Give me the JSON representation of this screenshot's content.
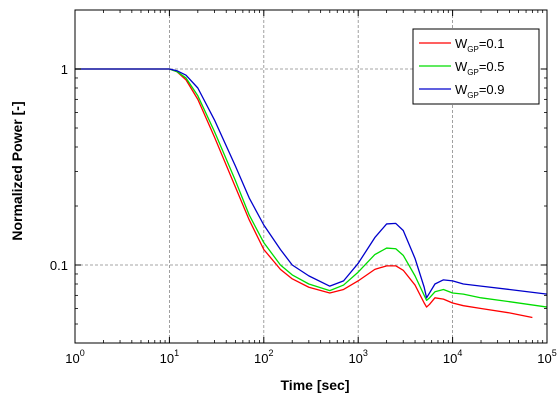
{
  "chart_data": {
    "type": "line",
    "xscale": "log",
    "yscale": "log",
    "xlim": [
      1,
      100000
    ],
    "ylim": [
      0.04,
      2
    ],
    "xlabel": "Time [sec]",
    "ylabel": "Normalized Power [-]",
    "grid": true,
    "legend_position": "top-right",
    "x_ticks": [
      {
        "base": "10",
        "exp": "0",
        "value": 1
      },
      {
        "base": "10",
        "exp": "1",
        "value": 10
      },
      {
        "base": "10",
        "exp": "2",
        "value": 100
      },
      {
        "base": "10",
        "exp": "3",
        "value": 1000
      },
      {
        "base": "10",
        "exp": "4",
        "value": 10000
      },
      {
        "base": "10",
        "exp": "5",
        "value": 100000
      }
    ],
    "y_ticks": [
      {
        "label": "1",
        "value": 1
      },
      {
        "label": "0.1",
        "value": 0.1
      }
    ],
    "series": [
      {
        "name_main": "W",
        "name_sub": "GP",
        "name_tail": "=0.1",
        "color": "#ff0000",
        "x": [
          1,
          5,
          10,
          12,
          15,
          20,
          30,
          50,
          70,
          100,
          150,
          200,
          300,
          500,
          700,
          1000,
          1500,
          2000,
          2500,
          3000,
          4000,
          5000,
          5300,
          5700,
          6500,
          8000,
          10000,
          13000,
          20000,
          40000,
          70000
        ],
        "y": [
          1.0,
          1.0,
          1.0,
          0.97,
          0.88,
          0.7,
          0.45,
          0.25,
          0.17,
          0.12,
          0.095,
          0.085,
          0.077,
          0.072,
          0.075,
          0.083,
          0.095,
          0.099,
          0.099,
          0.094,
          0.079,
          0.064,
          0.061,
          0.063,
          0.068,
          0.067,
          0.064,
          0.062,
          0.06,
          0.057,
          0.054
        ]
      },
      {
        "name_main": "W",
        "name_sub": "GP",
        "name_tail": "=0.5",
        "color": "#00dd00",
        "x": [
          1,
          5,
          10,
          12,
          15,
          20,
          30,
          50,
          70,
          100,
          150,
          200,
          300,
          500,
          700,
          1000,
          1500,
          2000,
          2500,
          3000,
          4000,
          5000,
          5300,
          5700,
          6500,
          8000,
          10000,
          13000,
          20000,
          40000,
          100000
        ],
        "y": [
          1.0,
          1.0,
          1.0,
          0.97,
          0.9,
          0.73,
          0.48,
          0.27,
          0.18,
          0.13,
          0.1,
          0.089,
          0.08,
          0.074,
          0.079,
          0.092,
          0.113,
          0.122,
          0.121,
          0.112,
          0.088,
          0.07,
          0.066,
          0.068,
          0.073,
          0.075,
          0.072,
          0.071,
          0.068,
          0.065,
          0.061
        ]
      },
      {
        "name_main": "W",
        "name_sub": "GP",
        "name_tail": "=0.9",
        "color": "#0000cc",
        "x": [
          1,
          5,
          10,
          12,
          15,
          20,
          30,
          50,
          70,
          100,
          150,
          200,
          300,
          500,
          700,
          1000,
          1500,
          2000,
          2500,
          3000,
          4000,
          5000,
          5300,
          5700,
          6500,
          8000,
          10000,
          13000,
          20000,
          40000,
          100000
        ],
        "y": [
          1.0,
          1.0,
          1.0,
          0.98,
          0.93,
          0.8,
          0.55,
          0.32,
          0.22,
          0.16,
          0.12,
          0.1,
          0.088,
          0.078,
          0.083,
          0.102,
          0.138,
          0.162,
          0.163,
          0.15,
          0.108,
          0.077,
          0.068,
          0.072,
          0.08,
          0.084,
          0.083,
          0.08,
          0.078,
          0.075,
          0.071
        ]
      }
    ]
  }
}
